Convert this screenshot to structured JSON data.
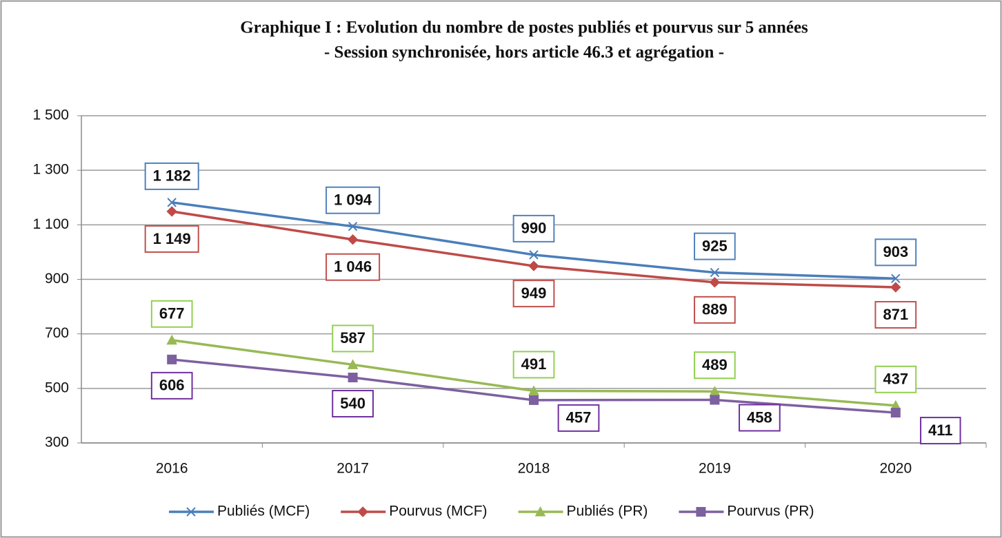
{
  "chart_data": {
    "type": "line",
    "title": "Graphique I : Evolution du nombre de postes publiés et pourvus sur 5 années",
    "subtitle": "- Session synchronisée, hors article 46.3 et agrégation -",
    "categories": [
      "2016",
      "2017",
      "2018",
      "2019",
      "2020"
    ],
    "series": [
      {
        "name": "Publiés (MCF)",
        "color": "#4a7ebb",
        "marker": "x",
        "values": [
          1182,
          1094,
          990,
          925,
          903
        ],
        "value_labels": [
          "1 182",
          "1 094",
          "990",
          "925",
          "903"
        ]
      },
      {
        "name": "Pourvus (MCF)",
        "color": "#be4b48",
        "marker": "diamond",
        "values": [
          1149,
          1046,
          949,
          889,
          871
        ],
        "value_labels": [
          "1 149",
          "1 046",
          "949",
          "889",
          "871"
        ]
      },
      {
        "name": "Publiés (PR)",
        "color": "#98b954",
        "marker": "triangle",
        "values": [
          677,
          587,
          491,
          489,
          437
        ]
      },
      {
        "name": "Pourvus (PR)",
        "color": "#7d60a0",
        "marker": "square",
        "values": [
          606,
          540,
          457,
          458,
          411
        ]
      }
    ],
    "ylim": [
      300,
      1500
    ],
    "yticks": [
      300,
      500,
      700,
      900,
      {
        "value": 1100,
        "label": "1 100"
      },
      {
        "value": 1300,
        "label": "1 300"
      },
      {
        "value": 1500,
        "label": "1 500"
      }
    ],
    "grid": true,
    "legend": "bottom"
  }
}
